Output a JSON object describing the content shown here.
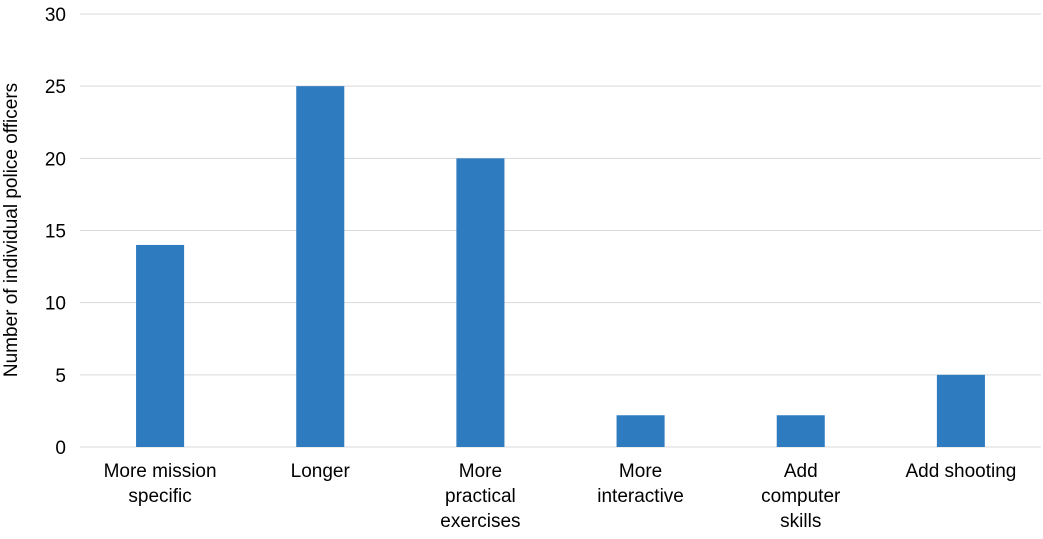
{
  "chart_data": {
    "type": "bar",
    "title": "",
    "xlabel": "",
    "ylabel": "Number of individual police officers",
    "categories": [
      [
        "More mission",
        "specific"
      ],
      [
        "Longer"
      ],
      [
        "More",
        "practical",
        "exercises"
      ],
      [
        "More",
        "interactive"
      ],
      [
        "Add",
        "computer",
        "skills"
      ],
      [
        "Add shooting"
      ]
    ],
    "series": [
      {
        "values": [
          14,
          25,
          20,
          2.2,
          2.2,
          5
        ],
        "color": "#2e7bc0"
      }
    ],
    "ylim": [
      0,
      30
    ],
    "yticks": [
      0,
      5,
      10,
      15,
      20,
      25,
      30
    ],
    "grid": true,
    "legend": "none",
    "colors": {
      "bar": "#2e7bc0",
      "grid": "#d9d9d9",
      "text": "#000000"
    }
  }
}
